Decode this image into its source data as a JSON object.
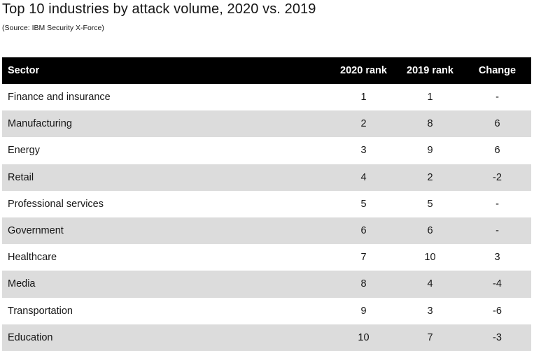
{
  "title": "Top 10 industries by attack volume, 2020 vs. 2019",
  "subtitle": "(Source: IBM Security X-Force)",
  "chart_data": {
    "type": "table",
    "title": "Top 10 industries by attack volume, 2020 vs. 2019",
    "subtitle": "(Source: IBM Security X-Force)",
    "columns": [
      "Sector",
      "2020 rank",
      "2019 rank",
      "Change"
    ],
    "rows": [
      [
        "Finance and insurance",
        "1",
        "1",
        "-"
      ],
      [
        "Manufacturing",
        "2",
        "8",
        "6"
      ],
      [
        "Energy",
        "3",
        "9",
        "6"
      ],
      [
        "Retail",
        "4",
        "2",
        "-2"
      ],
      [
        "Professional services",
        "5",
        "5",
        "-"
      ],
      [
        "Government",
        "6",
        "6",
        "-"
      ],
      [
        "Healthcare",
        "7",
        "10",
        "3"
      ],
      [
        "Media",
        "8",
        "4",
        "-4"
      ],
      [
        "Transportation",
        "9",
        "3",
        "-6"
      ],
      [
        "Education",
        "10",
        "7",
        "-3"
      ]
    ]
  },
  "colors": {
    "header_bg": "#000000",
    "header_text": "#ffffff",
    "stripe": "#dcdcdc",
    "text": "#161616"
  }
}
